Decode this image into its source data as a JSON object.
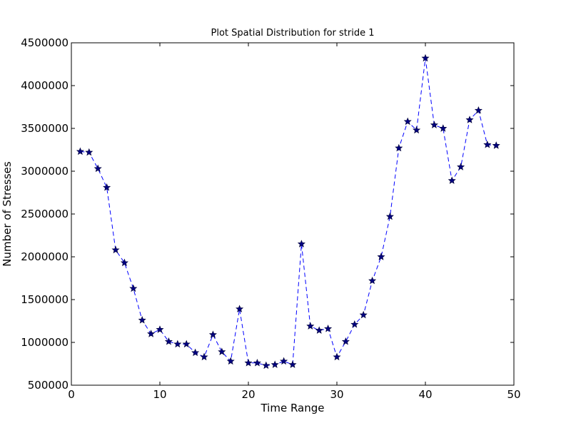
{
  "chart_data": {
    "type": "line",
    "title": "Plot Spatial Distribution for stride 1",
    "xlabel": "Time Range",
    "ylabel": "Number of Stresses",
    "xlim": [
      0,
      50
    ],
    "ylim": [
      500000,
      4500000
    ],
    "xticks": [
      "0",
      "10",
      "20",
      "30",
      "40",
      "50"
    ],
    "yticks": [
      "500000",
      "1000000",
      "1500000",
      "2000000",
      "2500000",
      "3000000",
      "3500000",
      "4000000",
      "4500000"
    ],
    "grid": false,
    "line_style": "dashed",
    "marker": "star",
    "color": "#0000ff",
    "marker_color": "#000080",
    "series": [
      {
        "x": [
          1,
          2,
          3,
          4,
          5,
          6,
          7,
          8,
          9,
          10,
          11,
          12,
          13,
          14,
          15,
          16,
          17,
          18,
          19,
          20,
          21,
          22,
          23,
          24,
          25,
          26,
          27,
          28,
          29,
          30,
          31,
          32,
          33,
          34,
          35,
          36,
          37,
          38,
          39,
          40,
          41,
          42,
          43,
          44,
          45,
          46,
          47,
          48
        ],
        "values": [
          3230000,
          3220000,
          3030000,
          2810000,
          2080000,
          1930000,
          1630000,
          1260000,
          1100000,
          1150000,
          1010000,
          980000,
          980000,
          880000,
          830000,
          1090000,
          890000,
          780000,
          1390000,
          760000,
          760000,
          730000,
          740000,
          780000,
          740000,
          2150000,
          1190000,
          1140000,
          1160000,
          830000,
          1010000,
          1210000,
          1320000,
          1720000,
          2000000,
          2470000,
          3270000,
          3580000,
          3480000,
          4320000,
          3540000,
          3500000,
          2890000,
          3050000,
          3600000,
          3710000,
          3310000,
          3300000
        ]
      }
    ]
  }
}
